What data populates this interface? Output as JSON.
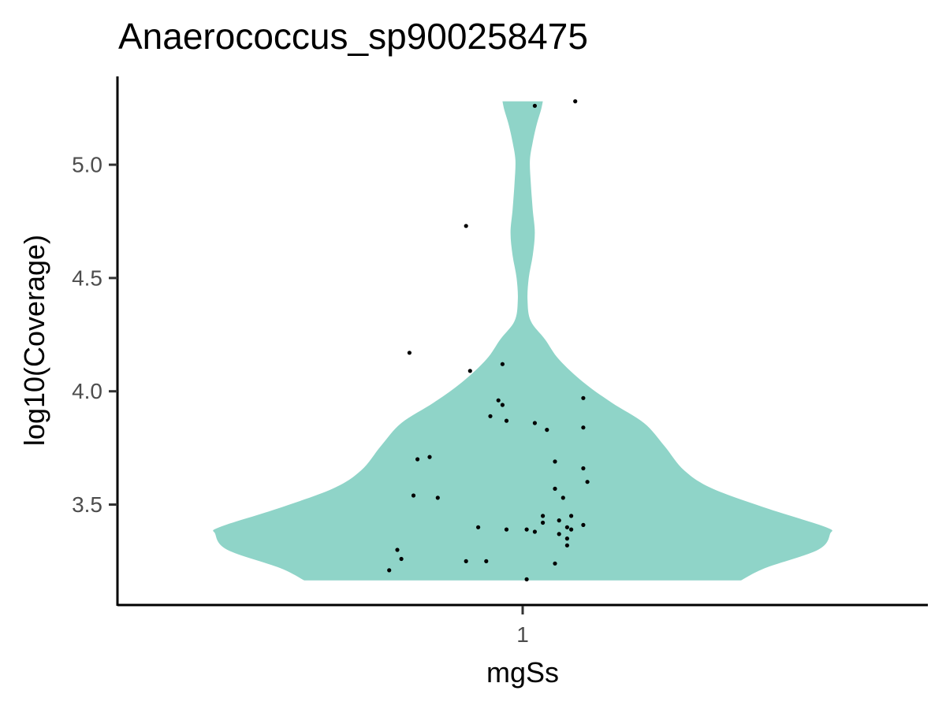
{
  "chart_data": {
    "type": "violin",
    "title": "Anaerococcus_sp900258475",
    "xlabel": "mgSs",
    "ylabel": "log10(Coverage)",
    "categories": [
      "1"
    ],
    "yticks": [
      "3.5",
      "4.0",
      "4.5",
      "5.0"
    ],
    "ylim": [
      3.12,
      5.31
    ],
    "fill_color": "#8fd4c8",
    "point_color": "#000000",
    "grid": false,
    "violin_density": [
      {
        "y": 3.165,
        "w": 0.54
      },
      {
        "y": 3.22,
        "w": 0.6
      },
      {
        "y": 3.3,
        "w": 0.73
      },
      {
        "y": 3.37,
        "w": 0.76
      },
      {
        "y": 3.4,
        "w": 0.75
      },
      {
        "y": 3.48,
        "w": 0.61
      },
      {
        "y": 3.57,
        "w": 0.47
      },
      {
        "y": 3.65,
        "w": 0.4
      },
      {
        "y": 3.76,
        "w": 0.35
      },
      {
        "y": 3.86,
        "w": 0.3
      },
      {
        "y": 3.95,
        "w": 0.22
      },
      {
        "y": 4.04,
        "w": 0.15
      },
      {
        "y": 4.14,
        "w": 0.09
      },
      {
        "y": 4.23,
        "w": 0.055
      },
      {
        "y": 4.31,
        "w": 0.02
      },
      {
        "y": 4.4,
        "w": 0.012
      },
      {
        "y": 4.5,
        "w": 0.015
      },
      {
        "y": 4.6,
        "w": 0.025
      },
      {
        "y": 4.7,
        "w": 0.03
      },
      {
        "y": 4.8,
        "w": 0.025
      },
      {
        "y": 4.92,
        "w": 0.02
      },
      {
        "y": 5.02,
        "w": 0.018
      },
      {
        "y": 5.1,
        "w": 0.025
      },
      {
        "y": 5.18,
        "w": 0.035
      },
      {
        "y": 5.24,
        "w": 0.045
      },
      {
        "y": 5.28,
        "w": 0.05
      }
    ],
    "points": [
      {
        "x": 1.13,
        "y": 5.28
      },
      {
        "x": 1.03,
        "y": 5.26
      },
      {
        "x": 0.86,
        "y": 4.73
      },
      {
        "x": 0.72,
        "y": 4.17
      },
      {
        "x": 0.87,
        "y": 4.09
      },
      {
        "x": 0.95,
        "y": 4.12
      },
      {
        "x": 0.94,
        "y": 3.96
      },
      {
        "x": 0.95,
        "y": 3.94
      },
      {
        "x": 0.92,
        "y": 3.89
      },
      {
        "x": 0.96,
        "y": 3.87
      },
      {
        "x": 1.03,
        "y": 3.86
      },
      {
        "x": 1.06,
        "y": 3.83
      },
      {
        "x": 1.15,
        "y": 3.97
      },
      {
        "x": 1.15,
        "y": 3.84
      },
      {
        "x": 0.74,
        "y": 3.7
      },
      {
        "x": 0.77,
        "y": 3.71
      },
      {
        "x": 1.08,
        "y": 3.69
      },
      {
        "x": 1.15,
        "y": 3.66
      },
      {
        "x": 1.16,
        "y": 3.6
      },
      {
        "x": 1.08,
        "y": 3.57
      },
      {
        "x": 0.73,
        "y": 3.54
      },
      {
        "x": 0.79,
        "y": 3.53
      },
      {
        "x": 1.1,
        "y": 3.53
      },
      {
        "x": 1.05,
        "y": 3.45
      },
      {
        "x": 1.05,
        "y": 3.42
      },
      {
        "x": 1.09,
        "y": 3.43
      },
      {
        "x": 1.12,
        "y": 3.45
      },
      {
        "x": 1.15,
        "y": 3.41
      },
      {
        "x": 1.11,
        "y": 3.4
      },
      {
        "x": 1.12,
        "y": 3.39
      },
      {
        "x": 0.89,
        "y": 3.4
      },
      {
        "x": 0.96,
        "y": 3.39
      },
      {
        "x": 1.01,
        "y": 3.39
      },
      {
        "x": 1.03,
        "y": 3.38
      },
      {
        "x": 1.09,
        "y": 3.37
      },
      {
        "x": 1.11,
        "y": 3.35
      },
      {
        "x": 1.11,
        "y": 3.32
      },
      {
        "x": 0.69,
        "y": 3.3
      },
      {
        "x": 0.7,
        "y": 3.26
      },
      {
        "x": 0.86,
        "y": 3.25
      },
      {
        "x": 0.91,
        "y": 3.25
      },
      {
        "x": 1.08,
        "y": 3.24
      },
      {
        "x": 0.67,
        "y": 3.21
      },
      {
        "x": 1.01,
        "y": 3.17
      }
    ]
  }
}
